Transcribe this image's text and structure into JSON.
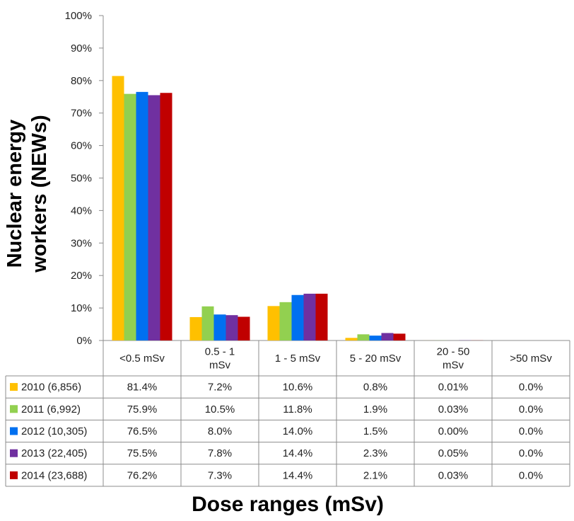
{
  "chart_data": {
    "type": "bar",
    "title": "",
    "xlabel": "Dose ranges (mSv)",
    "ylabel_lines": [
      "Nuclear energy",
      "workers (NEWs)"
    ],
    "ylim": [
      0,
      100
    ],
    "y_unit": "%",
    "y_ticks": [
      "0%",
      "10%",
      "20%",
      "30%",
      "40%",
      "50%",
      "60%",
      "70%",
      "80%",
      "90%",
      "100%"
    ],
    "grid": false,
    "legend": "data-table",
    "categories": [
      [
        "<0.5 mSv"
      ],
      [
        "0.5 - 1",
        "mSv"
      ],
      [
        "1 - 5 mSv"
      ],
      [
        "5 - 20 mSv"
      ],
      [
        "20 - 50",
        "mSv"
      ],
      [
        ">50 mSv"
      ]
    ],
    "series": [
      {
        "name": "2010 (6,856)",
        "color": "#FFC000",
        "values": [
          81.4,
          7.2,
          10.6,
          0.8,
          0.01,
          0.0
        ],
        "labels": [
          "81.4%",
          "7.2%",
          "10.6%",
          "0.8%",
          "0.01%",
          "0.0%"
        ]
      },
      {
        "name": "2011 (6,992)",
        "color": "#92D050",
        "values": [
          75.9,
          10.5,
          11.8,
          1.9,
          0.03,
          0.0
        ],
        "labels": [
          "75.9%",
          "10.5%",
          "11.8%",
          "1.9%",
          "0.03%",
          "0.0%"
        ]
      },
      {
        "name": "2012 (10,305)",
        "color": "#0070F0",
        "values": [
          76.5,
          8.0,
          14.0,
          1.5,
          0.0,
          0.0
        ],
        "labels": [
          "76.5%",
          "8.0%",
          "14.0%",
          "1.5%",
          "0.00%",
          "0.0%"
        ]
      },
      {
        "name": "2013 (22,405)",
        "color": "#7030A0",
        "values": [
          75.5,
          7.8,
          14.4,
          2.3,
          0.05,
          0.0
        ],
        "labels": [
          "75.5%",
          "7.8%",
          "14.4%",
          "2.3%",
          "0.05%",
          "0.0%"
        ]
      },
      {
        "name": "2014 (23,688)",
        "color": "#C00000",
        "values": [
          76.2,
          7.3,
          14.4,
          2.1,
          0.03,
          0.0
        ],
        "labels": [
          "76.2%",
          "7.3%",
          "14.4%",
          "2.1%",
          "0.03%",
          "0.0%"
        ]
      }
    ]
  }
}
